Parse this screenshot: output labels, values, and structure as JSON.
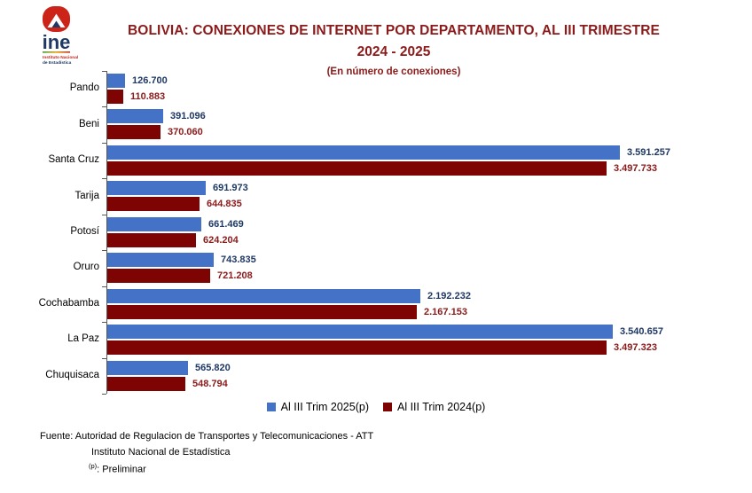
{
  "logo": {
    "name": "ine",
    "subtext_line1": "Instituto Nacional",
    "subtext_line2": "de Estadística",
    "red": "#CC2418",
    "navy": "#1F3864"
  },
  "header": {
    "title_line1": "BOLIVIA: CONEXIONES DE INTERNET POR DEPARTAMENTO, AL III TRIMESTRE",
    "title_line2": "2024 - 2025",
    "subtitle": "(En número de conexiones)",
    "title_color": "#8B1A1A"
  },
  "chart_data": {
    "type": "bar",
    "orientation": "horizontal",
    "title": "BOLIVIA: CONEXIONES DE INTERNET POR DEPARTAMENTO, AL III TRIMESTRE 2024 - 2025",
    "subtitle": "(En número de conexiones)",
    "grid": false,
    "legend_position": "bottom",
    "xlim": [
      0,
      3591257
    ],
    "categories": [
      "Pando",
      "Beni",
      "Santa Cruz",
      "Tarija",
      "Potosí",
      "Oruro",
      "Cochabamba",
      "La Paz",
      "Chuquisaca"
    ],
    "series": [
      {
        "name": "Al III Trim 2025(p)",
        "color": "#4472C7",
        "label_color": "#1F3864",
        "values": [
          126700,
          391096,
          3591257,
          691973,
          661469,
          743835,
          2192232,
          3540657,
          565820
        ],
        "labels": [
          "126.700",
          "391.096",
          "3.591.257",
          "691.973",
          "661.469",
          "743.835",
          "2.192.232",
          "3.540.657",
          "565.820"
        ]
      },
      {
        "name": "Al III Trim 2024(p)",
        "color": "#7E0303",
        "label_color": "#8B1A1A",
        "values": [
          110883,
          370060,
          3497733,
          644835,
          624204,
          721208,
          2167153,
          3497323,
          548794
        ],
        "labels": [
          "110.883",
          "370.060",
          "3.497.733",
          "644.835",
          "624.204",
          "721.208",
          "2.167.153",
          "3.497.323",
          "548.794"
        ]
      }
    ]
  },
  "footer": {
    "line1": "Fuente: Autoridad de Regulacion de Transportes y Telecomunicaciones - ATT",
    "line2": "Instituto Nacional de Estadística",
    "line3_sup": "(p)",
    "line3_rest": ": Preliminar"
  }
}
